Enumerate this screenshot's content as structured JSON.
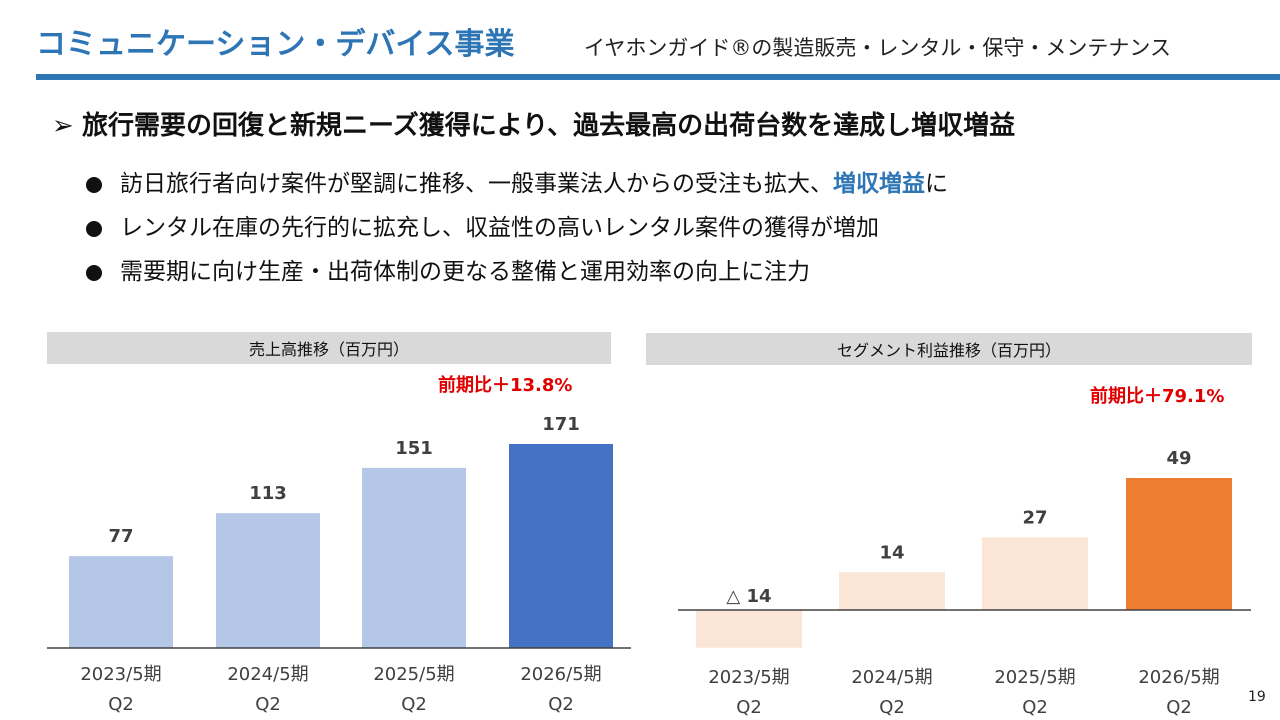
{
  "header": {
    "title": "コミュニケーション・デバイス事業",
    "subtitle": "イヤホンガイド®の製造販売・レンタル・保守・メンテナンス"
  },
  "headline": {
    "marker": "➢",
    "text": "旅行需要の回復と新規ニーズ獲得により、過去最高の出荷台数を達成し増収増益"
  },
  "bullets": [
    {
      "text": "訪日旅行者向け案件が堅調に推移、一般事業法人からの受注も拡大、",
      "emphasis": "増収増益",
      "suffix": "に"
    },
    {
      "text": "レンタル在庫の先行的に拡充し、収益性の高いレンタル案件の獲得が増加",
      "emphasis": "",
      "suffix": ""
    },
    {
      "text": "需要期に向け生産・出荷体制の更なる整備と運用効率の向上に注力",
      "emphasis": "",
      "suffix": ""
    }
  ],
  "page_number": "19",
  "colors": {
    "title_blue": "#2E75B6",
    "sales_past": "#B4C7E7",
    "sales_current": "#4472C4",
    "profit_past": "#FBE5D6",
    "profit_current": "#ED7D31",
    "growth_red": "#E00000",
    "header_gray": "#D9D9D9"
  },
  "chart_data": [
    {
      "type": "bar",
      "title": "売上高推移（百万円）",
      "growth_label": "前期比＋13.8%",
      "categories": [
        [
          "2023/5期",
          "Q2"
        ],
        [
          "2024/5期",
          "Q2"
        ],
        [
          "2025/5期",
          "Q2"
        ],
        [
          "2026/5期",
          "Q2"
        ]
      ],
      "values": [
        77,
        113,
        151,
        171
      ],
      "value_labels": [
        "77",
        "113",
        "151",
        "171"
      ],
      "ylim": [
        0,
        171
      ],
      "highlight_last": true,
      "grid": false
    },
    {
      "type": "bar",
      "title": "セグメント利益推移（百万円）",
      "growth_label": "前期比＋79.1%",
      "categories": [
        [
          "2023/5期",
          "Q2"
        ],
        [
          "2024/5期",
          "Q2"
        ],
        [
          "2025/5期",
          "Q2"
        ],
        [
          "2026/5期",
          "Q2"
        ]
      ],
      "values": [
        -14,
        14,
        27,
        49
      ],
      "value_labels": [
        "△ 14",
        "14",
        "27",
        "49"
      ],
      "ylim": [
        -14,
        49
      ],
      "highlight_last": true,
      "grid": false
    }
  ]
}
